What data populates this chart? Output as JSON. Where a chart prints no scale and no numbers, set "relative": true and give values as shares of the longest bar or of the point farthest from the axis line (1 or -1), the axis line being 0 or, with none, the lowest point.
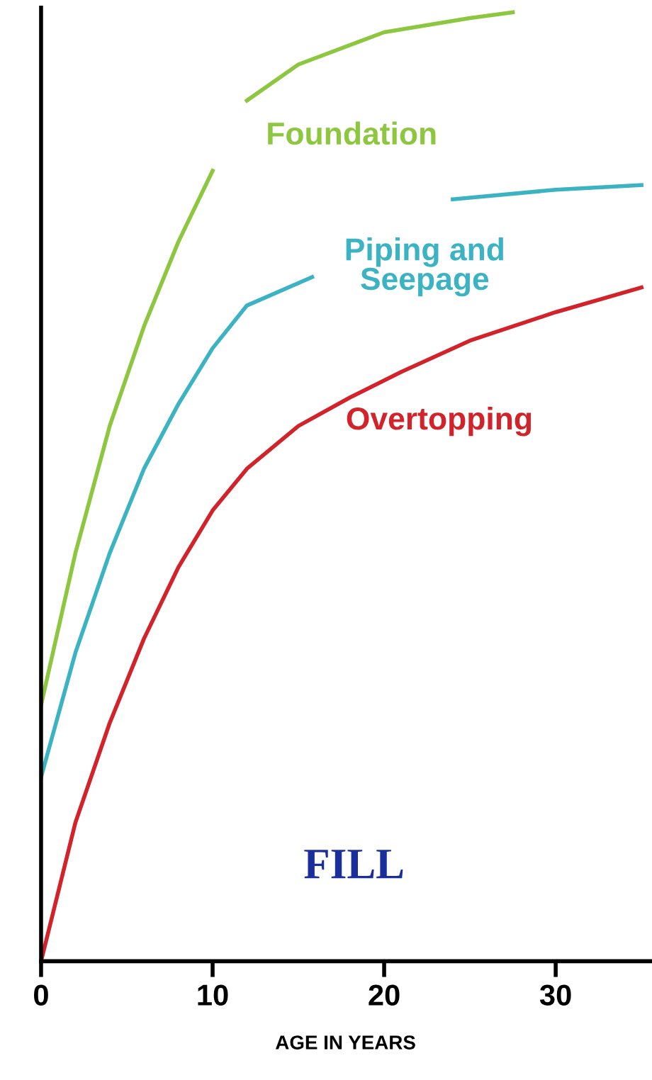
{
  "chart_data": {
    "type": "line",
    "relative": true,
    "xlabel": "AGE IN YEARS",
    "xlim": [
      0,
      35.5
    ],
    "xticks": [
      0,
      10,
      20,
      30
    ],
    "grid": false,
    "legend": false,
    "marker": "none",
    "line_style": "solid",
    "series": [
      {
        "name": "Foundation",
        "color": "#8dc63f",
        "x": [
          0,
          2,
          4,
          6,
          8,
          10,
          10.5,
          12,
          15,
          20,
          25,
          27.5
        ],
        "values": [
          0.27,
          0.43,
          0.564,
          0.669,
          0.758,
          0.833,
          null,
          0.907,
          0.945,
          0.979,
          0.994,
          1.0
        ]
      },
      {
        "name": "Piping and\nSeepage",
        "color": "#3bb3c3",
        "x": [
          0,
          2,
          4,
          6,
          8,
          10,
          12,
          15.8,
          20,
          24,
          30,
          35
        ],
        "values": [
          0.194,
          0.325,
          0.43,
          0.519,
          0.587,
          0.646,
          0.691,
          0.721,
          null,
          0.803,
          0.813,
          0.818
        ]
      },
      {
        "name": "Overtopping",
        "color": "#d2232a",
        "x": [
          0,
          2,
          4,
          6,
          8,
          10,
          12,
          15,
          18,
          21,
          25,
          30,
          35
        ],
        "values": [
          0,
          0.146,
          0.251,
          0.34,
          0.415,
          0.475,
          0.519,
          0.564,
          0.594,
          0.621,
          0.654,
          0.684,
          0.71
        ]
      }
    ],
    "annotations": [
      "FILL"
    ]
  }
}
